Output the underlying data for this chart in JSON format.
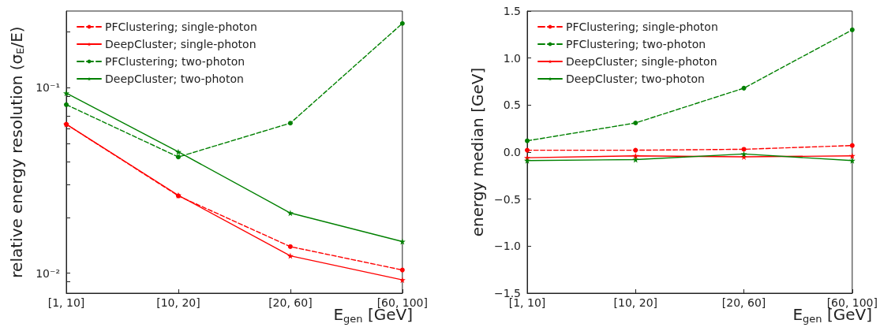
{
  "chart_data": [
    {
      "type": "line",
      "xlabel": "E$_{gen}$ [GeV]",
      "ylabel": "relative energy resolution (σ$_{E}$/E)",
      "categories": [
        "[1, 10]",
        "[10, 20]",
        "[20, 60]",
        "[60, 100]"
      ],
      "log": "y",
      "ylim": [
        0.0078,
        0.259
      ],
      "yticks": [
        {
          "value": 0.009,
          "label": null
        },
        {
          "value": 0.01,
          "label": "10⁻²"
        },
        {
          "value": 0.02,
          "label": null
        },
        {
          "value": 0.03,
          "label": null
        },
        {
          "value": 0.04,
          "label": null
        },
        {
          "value": 0.05,
          "label": null
        },
        {
          "value": 0.06,
          "label": null
        },
        {
          "value": 0.07,
          "label": null
        },
        {
          "value": 0.08,
          "label": null
        },
        {
          "value": 0.09,
          "label": null
        },
        {
          "value": 0.1,
          "label": "10⁻¹"
        },
        {
          "value": 0.2,
          "label": null
        }
      ],
      "grid": false,
      "legend": "top left",
      "series": [
        {
          "name": "PFClustering; single-photon",
          "color": "#ff0000",
          "line_style": "dashed",
          "marker": "circle",
          "values": [
            0.0635,
            0.0261,
            0.0139,
            0.0104
          ]
        },
        {
          "name": "DeepCluster; single-photon",
          "color": "#ff0000",
          "line_style": "solid",
          "marker": "star",
          "values": [
            0.0635,
            0.0263,
            0.0124,
            0.0092
          ]
        },
        {
          "name": "PFClustering; two-photon",
          "color": "#008000",
          "line_style": "dashed",
          "marker": "circle",
          "values": [
            0.081,
            0.0423,
            0.0644,
            0.222
          ]
        },
        {
          "name": "DeepCluster; two-photon",
          "color": "#008000",
          "line_style": "solid",
          "marker": "star",
          "values": [
            0.0935,
            0.0451,
            0.0211,
            0.0148
          ]
        }
      ]
    },
    {
      "type": "line",
      "xlabel": "E$_{gen}$ [GeV]",
      "ylabel": "energy median [GeV]",
      "categories": [
        "[1, 10]",
        "[10, 20]",
        "[20, 60]",
        "[60, 100]"
      ],
      "ylim": [
        -1.5,
        1.5
      ],
      "yticks": [
        {
          "value": -1.5,
          "label": "−1.5"
        },
        {
          "value": -1.0,
          "label": "−1.0"
        },
        {
          "value": -0.5,
          "label": "−0.5"
        },
        {
          "value": 0,
          "label": "0.0"
        },
        {
          "value": 0.5,
          "label": "0.5"
        },
        {
          "value": 1.0,
          "label": "1.0"
        },
        {
          "value": 1.5,
          "label": "1.5"
        }
      ],
      "grid": false,
      "legend": "top left",
      "series": [
        {
          "name": "PFClustering; single-photon",
          "color": "#ff0000",
          "line_style": "dashed",
          "marker": "circle",
          "values": [
            0.02,
            0.02,
            0.03,
            0.07
          ]
        },
        {
          "name": "PFClustering; two-photon",
          "color": "#008000",
          "line_style": "dashed",
          "marker": "circle",
          "values": [
            0.12,
            0.31,
            0.68,
            1.3
          ]
        },
        {
          "name": "DeepCluster; single-photon",
          "color": "#ff0000",
          "line_style": "solid",
          "marker": "star",
          "values": [
            -0.06,
            -0.04,
            -0.05,
            -0.04
          ]
        },
        {
          "name": "DeepCluster; two-photon",
          "color": "#008000",
          "line_style": "solid",
          "marker": "star",
          "values": [
            -0.09,
            -0.08,
            -0.02,
            -0.09
          ]
        }
      ]
    }
  ]
}
